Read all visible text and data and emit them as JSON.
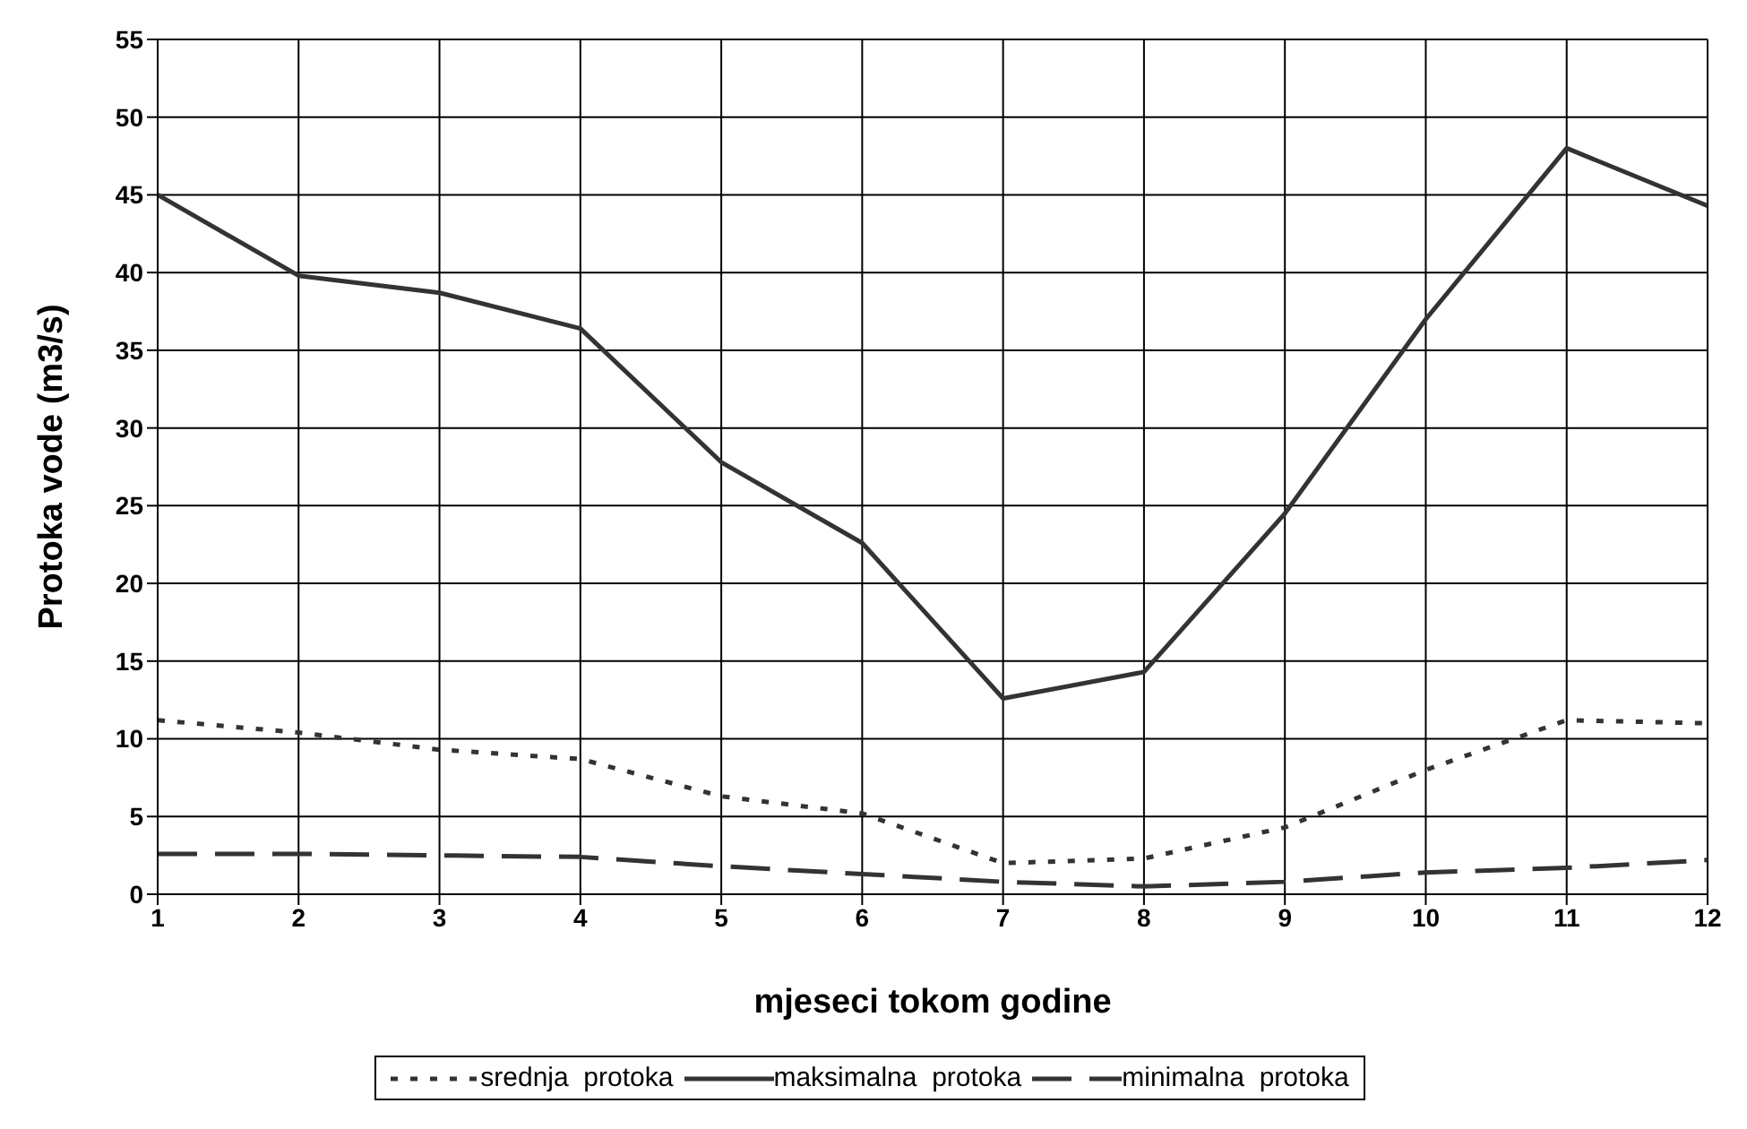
{
  "chart_data": {
    "type": "line",
    "xlabel": "mjeseci tokom godine",
    "ylabel": "Protoka vode (m3/s)",
    "x": [
      1,
      2,
      3,
      4,
      5,
      6,
      7,
      8,
      9,
      10,
      11,
      12
    ],
    "xlim": [
      1,
      12
    ],
    "xticks": [
      1,
      2,
      3,
      4,
      5,
      6,
      7,
      8,
      9,
      10,
      11,
      12
    ],
    "ylim": [
      0,
      55
    ],
    "yticks": [
      0,
      5,
      10,
      15,
      20,
      25,
      30,
      35,
      40,
      45,
      50,
      55
    ],
    "grid": true,
    "legend": "bottom",
    "marker": "none",
    "series": [
      {
        "name": "srednja  protoka",
        "color": "#333333",
        "line_style": "dotted",
        "values": [
          11.2,
          10.4,
          9.3,
          8.7,
          6.3,
          5.2,
          2.0,
          2.3,
          4.3,
          8.0,
          11.2,
          11.0
        ]
      },
      {
        "name": "maksimalna  protoka",
        "color": "#333333",
        "line_style": "solid",
        "values": [
          45,
          39.8,
          38.7,
          36.4,
          27.8,
          22.6,
          12.6,
          14.3,
          24.5,
          37,
          48,
          44.3
        ]
      },
      {
        "name": "minimalna  protoka",
        "color": "#333333",
        "line_style": "dashed",
        "values": [
          2.6,
          2.6,
          2.5,
          2.4,
          1.8,
          1.3,
          0.8,
          0.5,
          0.8,
          1.4,
          1.7,
          2.2
        ]
      }
    ]
  }
}
